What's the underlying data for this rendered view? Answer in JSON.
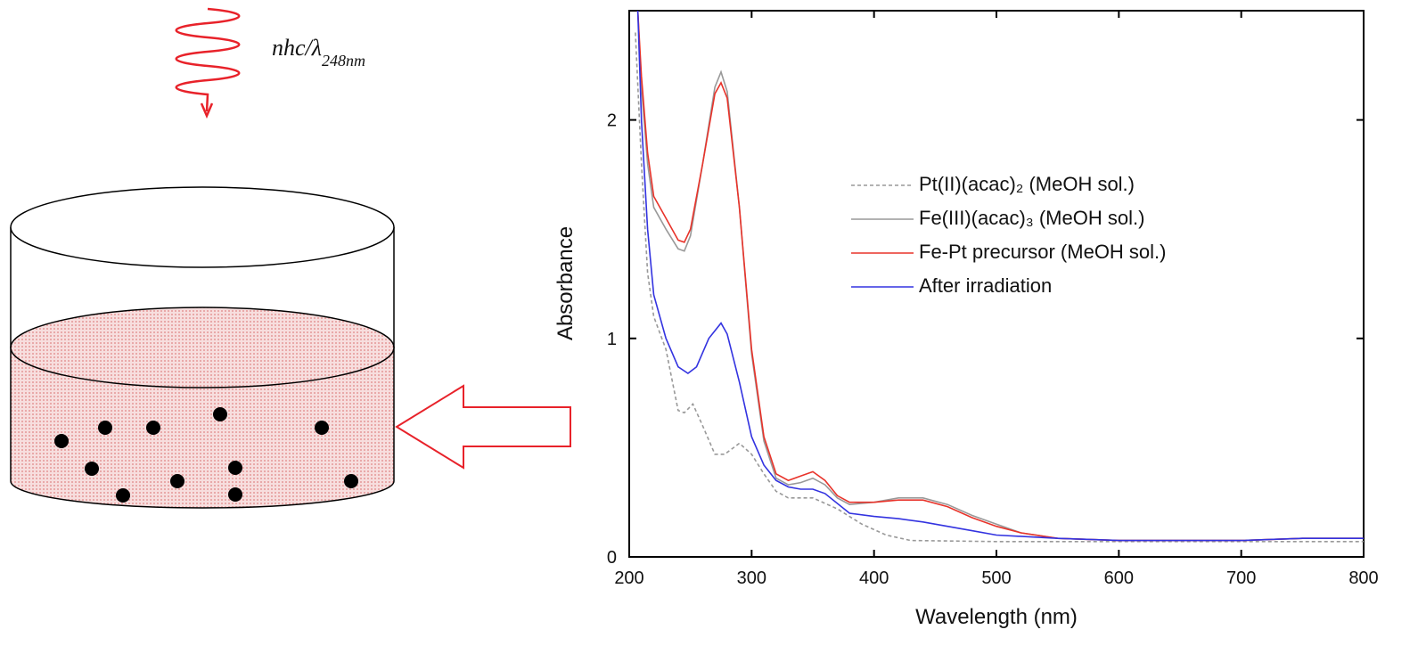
{
  "diagram": {
    "photon_label": "nhc/λ",
    "photon_subscript": "248nm"
  },
  "chart_data": {
    "type": "line",
    "x_label": "Wavelength (nm)",
    "y_label": "Absorbance",
    "xlim": [
      200,
      800
    ],
    "xticks": [
      200,
      300,
      400,
      500,
      600,
      700,
      800
    ],
    "ylim": [
      0,
      2.5
    ],
    "yticks": [
      0,
      1,
      2
    ],
    "legend": "upper-right",
    "series": [
      {
        "name": "Pt(II)(acac)₂ (MeOH sol.)",
        "color": "#999999",
        "dash": "dashed",
        "x": [
          205,
          210,
          215,
          220,
          230,
          240,
          245,
          252,
          260,
          270,
          278,
          290,
          300,
          310,
          320,
          330,
          350,
          370,
          390,
          410,
          430,
          500,
          800
        ],
        "values": [
          2.4,
          1.8,
          1.3,
          1.1,
          0.95,
          0.67,
          0.66,
          0.7,
          0.6,
          0.47,
          0.47,
          0.52,
          0.47,
          0.38,
          0.3,
          0.27,
          0.27,
          0.22,
          0.15,
          0.1,
          0.075,
          0.07,
          0.07
        ]
      },
      {
        "name": "Fe(III)(acac)₃ (MeOH sol.)",
        "color": "#999999",
        "dash": "solid",
        "x": [
          207,
          210,
          215,
          220,
          230,
          240,
          245,
          250,
          260,
          270,
          275,
          280,
          290,
          300,
          310,
          320,
          330,
          340,
          350,
          360,
          370,
          380,
          400,
          420,
          440,
          460,
          480,
          500,
          520,
          550,
          600,
          700,
          750,
          800
        ],
        "values": [
          2.5,
          2.15,
          1.8,
          1.6,
          1.5,
          1.41,
          1.4,
          1.47,
          1.8,
          2.15,
          2.22,
          2.13,
          1.6,
          0.93,
          0.53,
          0.36,
          0.33,
          0.34,
          0.36,
          0.33,
          0.27,
          0.24,
          0.25,
          0.27,
          0.27,
          0.24,
          0.19,
          0.15,
          0.11,
          0.085,
          0.075,
          0.075,
          0.085,
          0.085
        ]
      },
      {
        "name": "Fe-Pt precursor (MeOH sol.)",
        "color": "#e8332a",
        "dash": "solid",
        "x": [
          207,
          210,
          215,
          220,
          230,
          240,
          245,
          250,
          260,
          270,
          275,
          280,
          290,
          300,
          310,
          320,
          330,
          340,
          350,
          360,
          370,
          380,
          400,
          420,
          440,
          460,
          480,
          500,
          520,
          550,
          600,
          700,
          750,
          800
        ],
        "values": [
          2.5,
          2.2,
          1.85,
          1.65,
          1.55,
          1.45,
          1.44,
          1.5,
          1.8,
          2.12,
          2.17,
          2.1,
          1.6,
          0.95,
          0.55,
          0.38,
          0.35,
          0.37,
          0.39,
          0.35,
          0.28,
          0.25,
          0.25,
          0.26,
          0.26,
          0.23,
          0.18,
          0.14,
          0.11,
          0.085,
          0.075,
          0.075,
          0.085,
          0.085
        ]
      },
      {
        "name": "After irradiation",
        "color": "#3333e0",
        "dash": "solid",
        "x": [
          207,
          210,
          215,
          220,
          230,
          240,
          248,
          255,
          265,
          275,
          280,
          290,
          300,
          310,
          320,
          330,
          340,
          350,
          360,
          380,
          400,
          420,
          440,
          460,
          480,
          500,
          550,
          600,
          700,
          750,
          800
        ],
        "values": [
          2.5,
          2.0,
          1.5,
          1.2,
          1.0,
          0.87,
          0.84,
          0.87,
          1.0,
          1.07,
          1.02,
          0.8,
          0.55,
          0.42,
          0.35,
          0.32,
          0.31,
          0.31,
          0.29,
          0.2,
          0.185,
          0.175,
          0.16,
          0.14,
          0.12,
          0.1,
          0.085,
          0.075,
          0.075,
          0.085,
          0.085
        ]
      }
    ]
  }
}
